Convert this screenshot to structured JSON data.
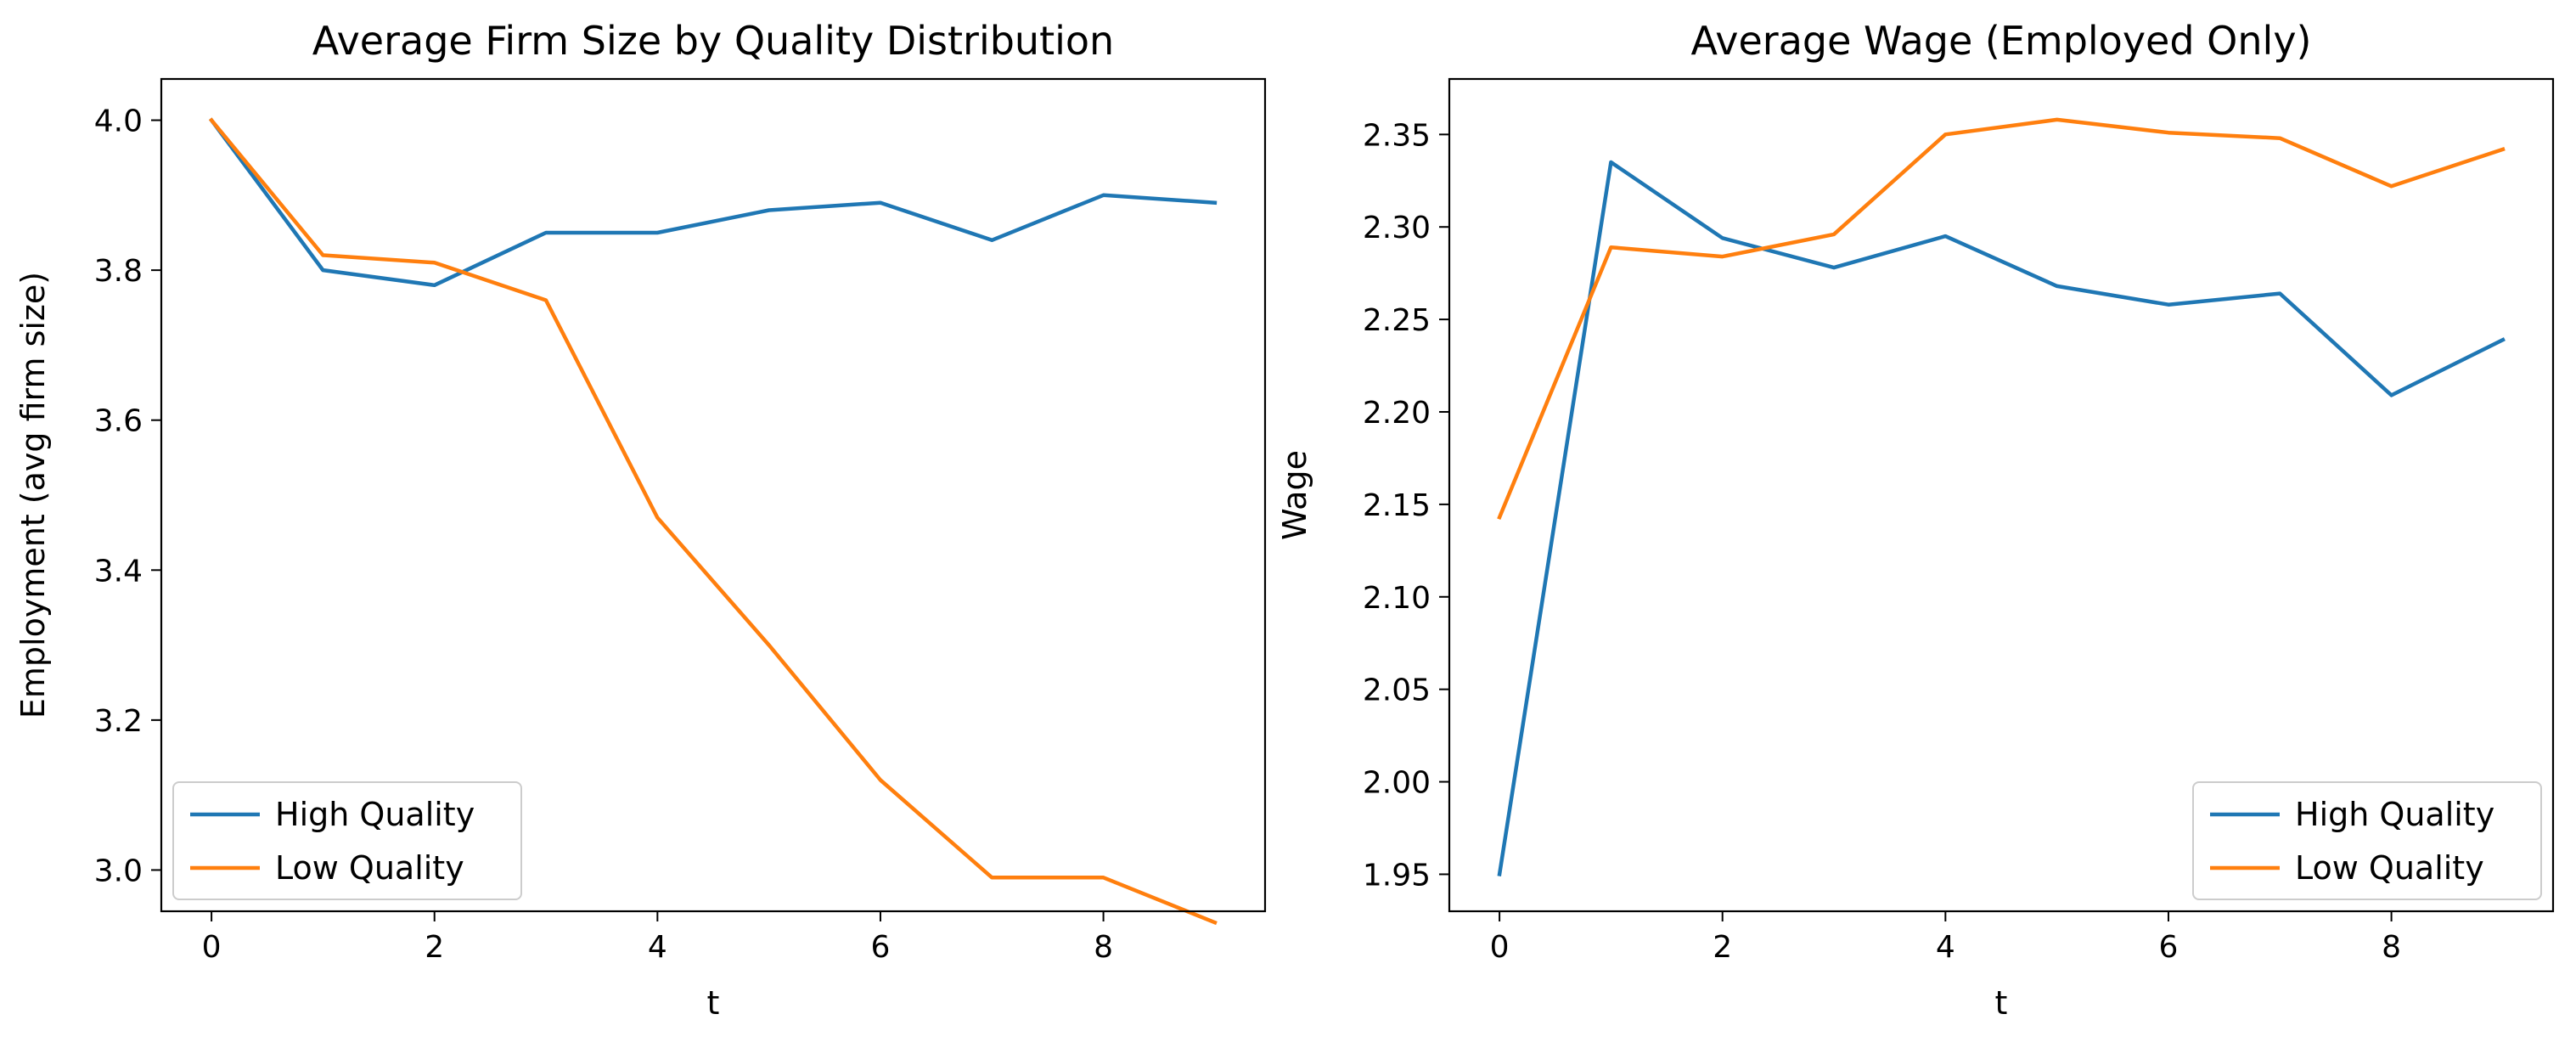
{
  "colors": {
    "high": "#1f77b4",
    "low": "#ff7f0e"
  },
  "chart_data": [
    {
      "type": "line",
      "title": "Average Firm Size by Quality Distribution",
      "xlabel": "t",
      "ylabel": "Employment (avg firm size)",
      "x": [
        0,
        1,
        2,
        3,
        4,
        5,
        6,
        7,
        8,
        9
      ],
      "xlim": [
        -0.45,
        9.45
      ],
      "ylim": [
        2.945,
        4.055
      ],
      "xticks": [
        0,
        2,
        4,
        6,
        8
      ],
      "yticks": [
        3.0,
        3.2,
        3.4,
        3.6,
        3.8,
        4.0
      ],
      "xtick_labels": [
        "0",
        "2",
        "4",
        "6",
        "8"
      ],
      "ytick_labels": [
        "3.0",
        "3.2",
        "3.4",
        "3.6",
        "3.8",
        "4.0"
      ],
      "legend_position": "lower-left",
      "series": [
        {
          "name": "High Quality",
          "color": "#1f77b4",
          "values": [
            4.0,
            3.8,
            3.78,
            3.85,
            3.85,
            3.88,
            3.89,
            3.84,
            3.9,
            3.89
          ]
        },
        {
          "name": "Low Quality",
          "color": "#ff7f0e",
          "values": [
            4.0,
            3.82,
            3.81,
            3.76,
            3.47,
            3.3,
            3.12,
            2.99,
            2.99,
            2.93
          ]
        }
      ]
    },
    {
      "type": "line",
      "title": "Average Wage (Employed Only)",
      "xlabel": "t",
      "ylabel": "Wage",
      "x": [
        0,
        1,
        2,
        3,
        4,
        5,
        6,
        7,
        8,
        9
      ],
      "xlim": [
        -0.45,
        9.45
      ],
      "ylim": [
        1.93,
        2.38
      ],
      "xticks": [
        0,
        2,
        4,
        6,
        8
      ],
      "yticks": [
        1.95,
        2.0,
        2.05,
        2.1,
        2.15,
        2.2,
        2.25,
        2.3,
        2.35
      ],
      "xtick_labels": [
        "0",
        "2",
        "4",
        "6",
        "8"
      ],
      "ytick_labels": [
        "1.95",
        "2.00",
        "2.05",
        "2.10",
        "2.15",
        "2.20",
        "2.25",
        "2.30",
        "2.35"
      ],
      "legend_position": "lower-right",
      "series": [
        {
          "name": "High Quality",
          "color": "#1f77b4",
          "values": [
            1.95,
            2.335,
            2.294,
            2.278,
            2.295,
            2.268,
            2.258,
            2.264,
            2.209,
            2.239
          ]
        },
        {
          "name": "Low Quality",
          "color": "#ff7f0e",
          "values": [
            2.143,
            2.289,
            2.284,
            2.296,
            2.35,
            2.358,
            2.351,
            2.348,
            2.322,
            2.342
          ]
        }
      ]
    }
  ]
}
